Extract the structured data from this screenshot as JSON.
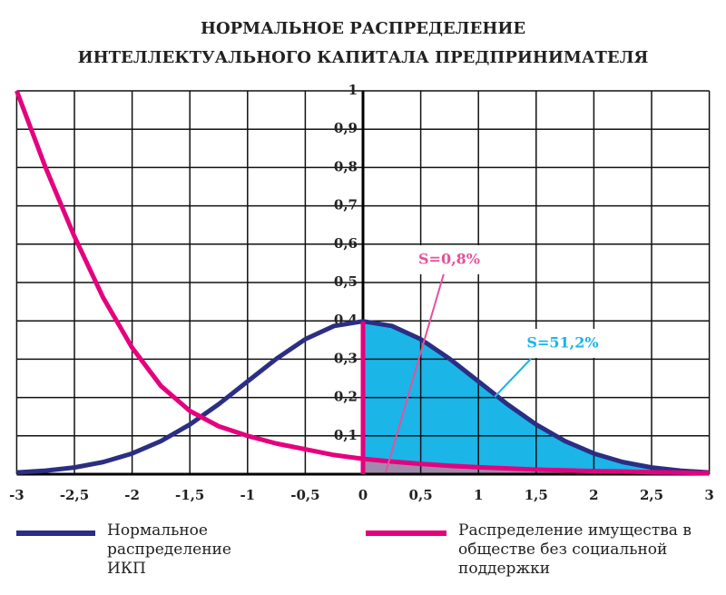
{
  "chart_data": {
    "type": "line",
    "title": [
      "НОРМАЛЬНОЕ РАСПРЕДЕЛЕНИЕ",
      "ИНТЕЛЛЕКТУАЛЬНОГО КАПИТАЛА ПРЕДПРИНИМАТЕЛЯ"
    ],
    "x": [
      -3,
      -2.75,
      -2.5,
      -2.25,
      -2,
      -1.75,
      -1.5,
      -1.25,
      -1,
      -0.75,
      -0.5,
      -0.25,
      0,
      0.25,
      0.5,
      0.75,
      1,
      1.25,
      1.5,
      1.75,
      2,
      2.25,
      2.5,
      2.75,
      3
    ],
    "series": [
      {
        "name": "Нормальное распределение ИКП",
        "color": "#2b2e83",
        "values": [
          0.0044,
          0.0091,
          0.0175,
          0.0317,
          0.054,
          0.0863,
          0.1295,
          0.1826,
          0.242,
          0.3011,
          0.3521,
          0.3867,
          0.3989,
          0.3867,
          0.3521,
          0.3011,
          0.242,
          0.1826,
          0.1295,
          0.0863,
          0.054,
          0.0317,
          0.0175,
          0.0091,
          0.0044
        ]
      },
      {
        "name": "Распределение имущества в обществе без социальной поддержки",
        "color": "#e5007d",
        "values": [
          1.0,
          0.8,
          0.62,
          0.46,
          0.33,
          0.23,
          0.165,
          0.125,
          0.1,
          0.08,
          0.065,
          0.05,
          0.04,
          0.033,
          0.027,
          0.022,
          0.018,
          0.015,
          0.012,
          0.01,
          0.008,
          0.007,
          0.005,
          0.004,
          0.003
        ]
      }
    ],
    "annotations": [
      {
        "text": "S=0,8%",
        "color": "#e5519a"
      },
      {
        "text": "S=51,2%",
        "color": "#1bb5e8"
      }
    ],
    "area_colors": [
      "#1bb5e8",
      "#a08aab"
    ],
    "xlim": [
      -3,
      3
    ],
    "xticks": [
      {
        "value": -3,
        "label": "-3"
      },
      {
        "value": -2.5,
        "label": "-2,5"
      },
      {
        "value": -2,
        "label": "-2"
      },
      {
        "value": -1.5,
        "label": "-1,5"
      },
      {
        "value": -1,
        "label": "-1"
      },
      {
        "value": -0.5,
        "label": "-0,5"
      },
      0,
      {
        "value": 0.5,
        "label": "0,5"
      },
      1,
      {
        "value": 1.5,
        "label": "1,5"
      },
      2,
      {
        "value": 2.5,
        "label": "2,5"
      },
      3
    ],
    "ylim": [
      0,
      1
    ],
    "yticks": [
      {
        "value": 0.1,
        "label": "0,1"
      },
      {
        "value": 0.2,
        "label": "0,2"
      },
      {
        "value": 0.3,
        "label": "0,3"
      },
      {
        "value": 0.4,
        "label": "0,4"
      },
      {
        "value": 0.5,
        "label": "0,5"
      },
      {
        "value": 0.6,
        "label": "0,6"
      },
      {
        "value": 0.7,
        "label": "0,7"
      },
      {
        "value": 0.8,
        "label": "0,8"
      },
      {
        "value": 0.9,
        "label": "0,9"
      },
      1
    ],
    "grid": true
  }
}
